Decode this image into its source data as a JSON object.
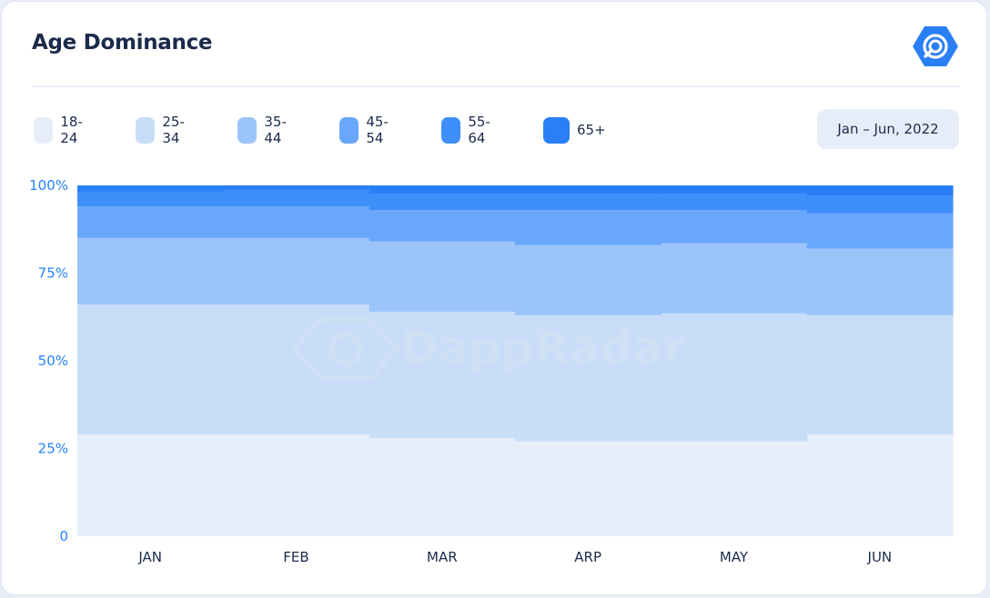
{
  "header": {
    "title": "Age Dominance",
    "logo_icon": "dappradar-logo-icon"
  },
  "date_range": {
    "label": "Jan – Jun, 2022"
  },
  "watermark": {
    "text": "DappRadar",
    "icon": "dappradar-logo-icon"
  },
  "chart_data": {
    "type": "area",
    "stacked": true,
    "step": true,
    "title": "Age Dominance",
    "xlabel": "",
    "ylabel": "",
    "categories": [
      "JAN",
      "FEB",
      "MAR",
      "ARP",
      "MAY",
      "JUN"
    ],
    "y_ticks": [
      "0",
      "25%",
      "50%",
      "75%",
      "100%"
    ],
    "ylim": [
      0,
      100
    ],
    "grid": false,
    "legend_position": "top-left",
    "series": [
      {
        "name": "18-24",
        "color": "#e8eef9",
        "values": [
          29,
          29,
          28,
          27,
          27,
          29
        ]
      },
      {
        "name": "25-34",
        "color": "#c8ddf8",
        "values": [
          37,
          37,
          36,
          36,
          36.5,
          34
        ]
      },
      {
        "name": "35-44",
        "color": "#9bc4fb",
        "values": [
          19,
          19,
          20,
          20,
          20,
          19
        ]
      },
      {
        "name": "45-54",
        "color": "#68a7fb",
        "values": [
          9,
          9,
          9,
          10,
          9.5,
          10
        ]
      },
      {
        "name": "55-64",
        "color": "#3f8ffa",
        "values": [
          4,
          4.5,
          4.5,
          4.5,
          4.5,
          5
        ]
      },
      {
        "name": "65+",
        "color": "#2a7ff7",
        "values": [
          2,
          1.5,
          2.5,
          2.5,
          2.5,
          3
        ]
      }
    ]
  }
}
